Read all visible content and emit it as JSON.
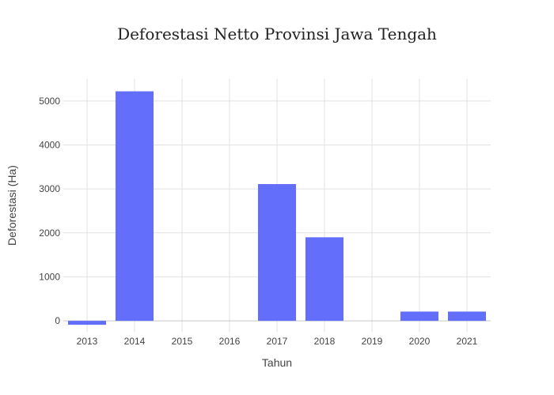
{
  "chart_data": {
    "type": "bar",
    "title": "Deforestasi Netto Provinsi Jawa Tengah",
    "xlabel": "Tahun",
    "ylabel": "Deforestasi (Ha)",
    "categories": [
      "2013",
      "2014",
      "2015",
      "2016",
      "2017",
      "2018",
      "2019",
      "2020",
      "2021"
    ],
    "values": [
      -90,
      5220,
      0,
      0,
      3110,
      1900,
      0,
      210,
      210
    ],
    "ylim": [
      -250,
      5500
    ],
    "yticks": [
      0,
      1000,
      2000,
      3000,
      4000,
      5000
    ],
    "ytick_labels": [
      "0",
      "1000",
      "2000",
      "3000",
      "4000",
      "5000"
    ],
    "grid": true,
    "bar_color": "#636efa"
  }
}
